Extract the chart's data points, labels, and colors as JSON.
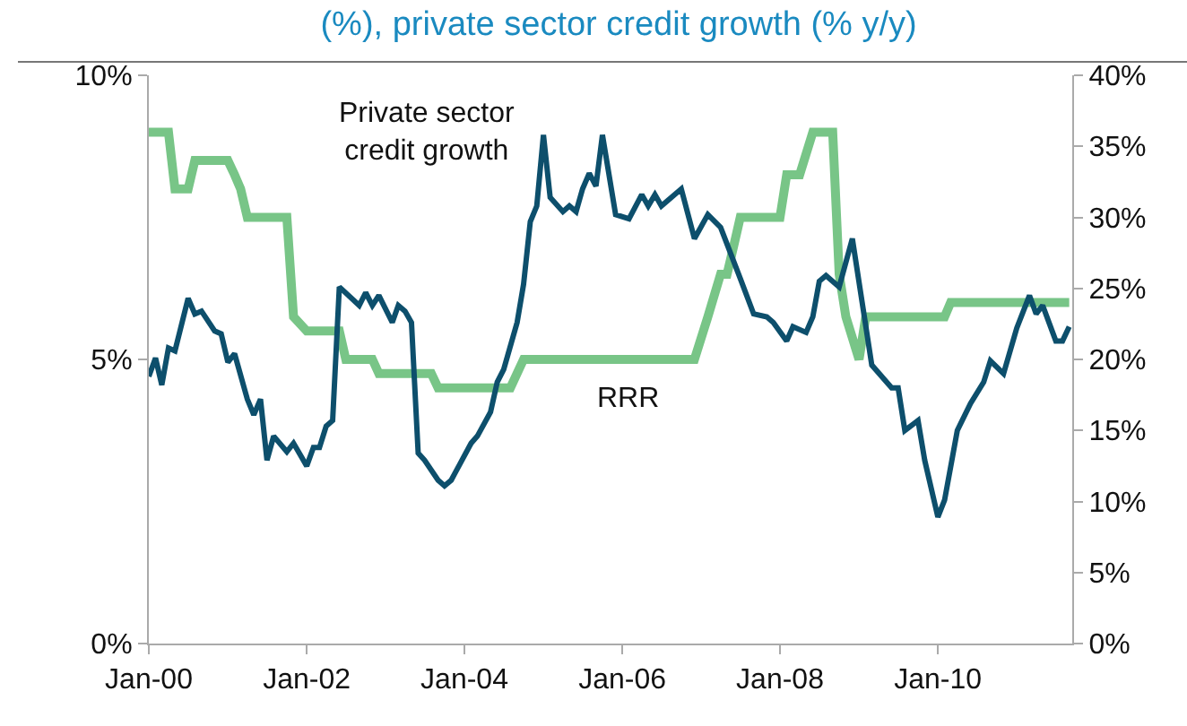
{
  "chart_data": {
    "type": "line",
    "title": "(%), private sector credit growth (% y/y)",
    "legend": false,
    "grid": false,
    "marker": "none",
    "xlim": [
      "2000-01-01",
      "2011-09-15"
    ],
    "xticks": [
      {
        "value": "2000-01-01",
        "label": "Jan-00"
      },
      {
        "value": "2002-01-01",
        "label": "Jan-02"
      },
      {
        "value": "2004-01-01",
        "label": "Jan-04"
      },
      {
        "value": "2006-01-01",
        "label": "Jan-06"
      },
      {
        "value": "2008-01-01",
        "label": "Jan-08"
      },
      {
        "value": "2010-01-01",
        "label": "Jan-10"
      }
    ],
    "ylim": [
      0,
      10
    ],
    "yticks": [
      {
        "value": 0,
        "label": "0%"
      },
      {
        "value": 5,
        "label": "5%"
      },
      {
        "value": 10,
        "label": "10%"
      }
    ],
    "y2lim": [
      0,
      40
    ],
    "y2ticks": [
      {
        "value": 0,
        "label": "0%"
      },
      {
        "value": 5,
        "label": "5%"
      },
      {
        "value": 10,
        "label": "10%"
      },
      {
        "value": 15,
        "label": "15%"
      },
      {
        "value": 20,
        "label": "20%"
      },
      {
        "value": 25,
        "label": "25%"
      },
      {
        "value": 30,
        "label": "30%"
      },
      {
        "value": 35,
        "label": "35%"
      },
      {
        "value": 40,
        "label": "40%"
      }
    ],
    "series": [
      {
        "name": "RRR",
        "color": "#78c587",
        "x": [
          "2000-01",
          "2000-04",
          "2000-05",
          "2000-07",
          "2000-08",
          "2001-01",
          "2001-02",
          "2001-03",
          "2001-04",
          "2001-10",
          "2001-11",
          "2002-01",
          "2002-06",
          "2002-07",
          "2002-11",
          "2002-12",
          "2003-08",
          "2003-09",
          "2004-08",
          "2004-10",
          "2006-12",
          "2007-02",
          "2007-04",
          "2007-05",
          "2007-06",
          "2007-07",
          "2008-01",
          "2008-02",
          "2008-04",
          "2008-06",
          "2008-09",
          "2008-10",
          "2008-11",
          "2009-01",
          "2009-02",
          "2010-02",
          "2010-03",
          "2011-09"
        ],
        "values": [
          9,
          9,
          8,
          8,
          8.5,
          8.5,
          8.25,
          8,
          7.5,
          7.5,
          5.75,
          5.5,
          5.5,
          5,
          5,
          4.75,
          4.75,
          4.5,
          4.5,
          5,
          5,
          5.75,
          6.5,
          6.5,
          7,
          7.5,
          7.5,
          8.25,
          8.25,
          9,
          9,
          6.5,
          5.75,
          5,
          5.75,
          5.75,
          6,
          6
        ]
      },
      {
        "name": "Private sector credit growth",
        "color": "#0d4f6c",
        "axis": "y2",
        "x": [
          "2000-01",
          "2000-02",
          "2000-03",
          "2000-04",
          "2000-05",
          "2000-07",
          "2000-08",
          "2000-09",
          "2000-11",
          "2000-12",
          "2001-01",
          "2001-02",
          "2001-04",
          "2001-05",
          "2001-06",
          "2001-07",
          "2001-08",
          "2001-10",
          "2001-11",
          "2002-01",
          "2002-02",
          "2002-03",
          "2002-04",
          "2002-05",
          "2002-06",
          "2002-09",
          "2002-10",
          "2002-11",
          "2002-12",
          "2003-02",
          "2003-03",
          "2003-04",
          "2003-05",
          "2003-06",
          "2003-07",
          "2003-09",
          "2003-10",
          "2003-11",
          "2004-02",
          "2004-03",
          "2004-05",
          "2004-06",
          "2004-07",
          "2004-09",
          "2004-10",
          "2004-11",
          "2004-12",
          "2005-01",
          "2005-02",
          "2005-04",
          "2005-05",
          "2005-06",
          "2005-07",
          "2005-08",
          "2005-09",
          "2005-10",
          "2005-12",
          "2006-02",
          "2006-04",
          "2006-05",
          "2006-06",
          "2006-07",
          "2006-10",
          "2006-12",
          "2007-02",
          "2007-04",
          "2007-07",
          "2007-09",
          "2007-11",
          "2007-12",
          "2008-02",
          "2008-03",
          "2008-05",
          "2008-06",
          "2008-07",
          "2008-08",
          "2008-10",
          "2008-12",
          "2009-03",
          "2009-06",
          "2009-07",
          "2009-08",
          "2009-10",
          "2009-11",
          "2010-01",
          "2010-02",
          "2010-04",
          "2010-06",
          "2010-08",
          "2010-09",
          "2010-11",
          "2011-01",
          "2011-03",
          "2011-04",
          "2011-05",
          "2011-07",
          "2011-08",
          "2011-09"
        ],
        "values": [
          18.8,
          20.1,
          18.2,
          20.8,
          20.6,
          24.3,
          23.2,
          23.4,
          22.0,
          21.8,
          19.8,
          20.4,
          17.2,
          16.1,
          17.2,
          12.9,
          14.6,
          13.5,
          14.1,
          12.5,
          13.8,
          13.8,
          15.3,
          15.7,
          25.1,
          23.8,
          24.7,
          23.8,
          24.5,
          22.6,
          23.8,
          23.4,
          22.6,
          13.4,
          12.9,
          11.5,
          11.1,
          11.5,
          14.1,
          14.6,
          16.3,
          18.4,
          19.3,
          22.6,
          25.3,
          29.7,
          30.8,
          35.8,
          31.4,
          30.4,
          30.8,
          30.4,
          32.0,
          33.1,
          32.2,
          35.8,
          30.2,
          29.9,
          31.6,
          30.8,
          31.6,
          30.8,
          32.0,
          28.5,
          30.2,
          29.3,
          25.7,
          23.2,
          23.0,
          22.6,
          21.3,
          22.3,
          21.9,
          23.0,
          25.5,
          25.9,
          25.1,
          28.5,
          19.6,
          18.0,
          18.0,
          15.0,
          15.7,
          12.9,
          8.9,
          10.1,
          15.0,
          16.9,
          18.4,
          19.9,
          19.0,
          22.2,
          24.5,
          23.2,
          23.8,
          21.3,
          21.3,
          22.3
        ]
      }
    ]
  }
}
